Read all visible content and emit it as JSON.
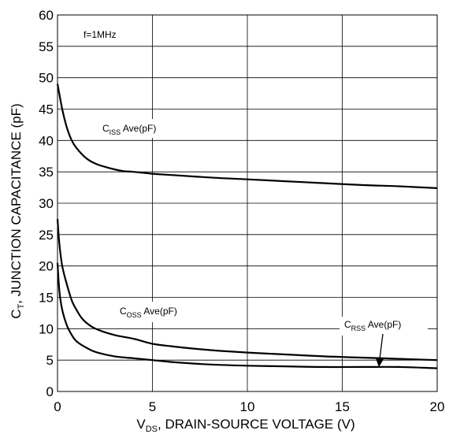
{
  "chart_data": {
    "type": "line",
    "xlabel": {
      "prefix": "V",
      "sub": "DS",
      "rest": ", DRAIN-SOURCE VOLTAGE (V)"
    },
    "ylabel": {
      "prefix": "C",
      "sub": "T",
      "rest": ", JUNCTION CAPACITANCE (pF)"
    },
    "xlim": [
      0,
      20
    ],
    "ylim": [
      0,
      60
    ],
    "xticks": [
      0,
      5,
      10,
      15,
      20
    ],
    "yticks": [
      0,
      5,
      10,
      15,
      20,
      25,
      30,
      35,
      40,
      45,
      50,
      55,
      60
    ],
    "grid": true,
    "annotations": {
      "freq": "f=1MHz"
    },
    "series": [
      {
        "name": {
          "c": "C",
          "sub": "ISS",
          "rest": " Ave(pF)"
        },
        "x": [
          0,
          0.25,
          0.5,
          0.75,
          1,
          1.5,
          2,
          2.5,
          3,
          3.5,
          4,
          5,
          6,
          8,
          10,
          12,
          14,
          16,
          18,
          20
        ],
        "y": [
          49,
          45,
          42,
          40,
          38.8,
          37.2,
          36.3,
          35.8,
          35.4,
          35.1,
          35,
          34.7,
          34.5,
          34.1,
          33.8,
          33.5,
          33.2,
          32.9,
          32.7,
          32.4
        ]
      },
      {
        "name": {
          "c": "C",
          "sub": "OSS",
          "rest": " Ave(pF)"
        },
        "x": [
          0,
          0.1,
          0.25,
          0.5,
          0.75,
          1,
          1.25,
          1.5,
          2,
          3,
          4,
          5,
          6,
          8,
          10,
          12,
          14,
          16,
          18,
          20
        ],
        "y": [
          27.5,
          23.5,
          20,
          17,
          14.5,
          13,
          11.8,
          11,
          10,
          9,
          8.4,
          7.6,
          7.2,
          6.6,
          6.2,
          5.9,
          5.6,
          5.4,
          5.2,
          5
        ]
      },
      {
        "name": {
          "c": "C",
          "sub": "RSS",
          "rest": " Ave(pF)"
        },
        "x": [
          0,
          0.1,
          0.25,
          0.5,
          0.75,
          1,
          1.5,
          2,
          3,
          4,
          5,
          6,
          8,
          10,
          12,
          14,
          16,
          18,
          20
        ],
        "y": [
          20.5,
          16,
          13,
          10.5,
          9,
          8,
          7,
          6.3,
          5.6,
          5.3,
          5,
          4.7,
          4.3,
          4.1,
          4,
          3.9,
          3.9,
          3.9,
          3.7
        ]
      }
    ]
  }
}
